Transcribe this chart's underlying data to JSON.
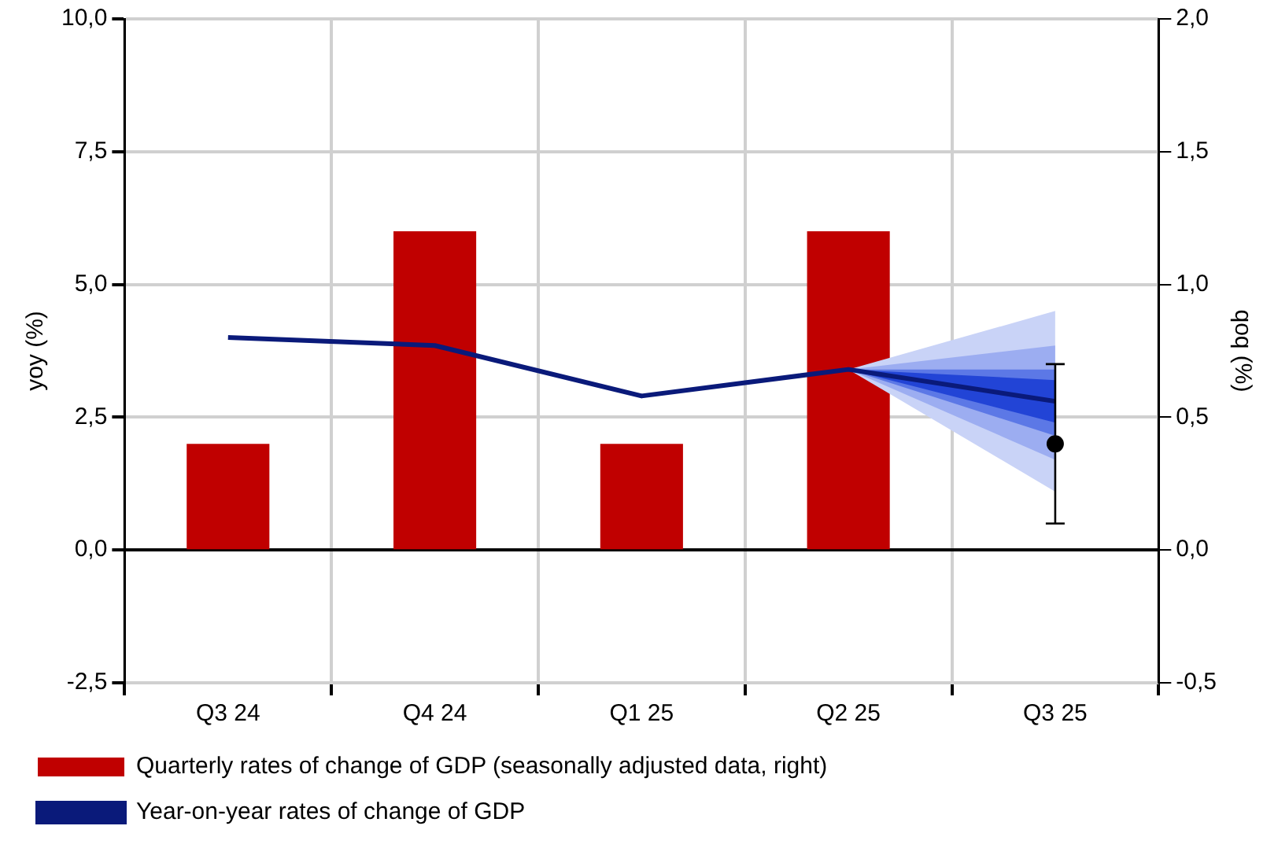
{
  "chart_data": {
    "type": "bar",
    "ylabel": "yoy (%)",
    "y2label": "qoq (%)",
    "categories": [
      "Q3 24",
      "Q4 24",
      "Q1 25",
      "Q2 25",
      "Q3 25"
    ],
    "series": [
      {
        "name": "Quarterly rates of change of GDP (seasonally adjusted data, right)",
        "axis": "y2",
        "color": "#c00000",
        "values": [
          0.4,
          1.2,
          0.4,
          1.2,
          null
        ]
      },
      {
        "type": "line",
        "color": "#c9d3f7",
        "values": [
          null,
          null,
          null,
          null,
          null
        ],
        "lower": [
          null,
          null,
          null,
          3.4,
          1.1
        ],
        "upper": [
          null,
          null,
          null,
          3.4,
          4.5
        ]
      },
      {
        "type": "line",
        "color": "#9cadf1",
        "values": [
          null,
          null,
          null,
          null,
          null
        ],
        "lower": [
          null,
          null,
          null,
          3.4,
          1.7
        ],
        "upper": [
          null,
          null,
          null,
          3.4,
          3.85
        ]
      },
      {
        "type": "line",
        "color": "#5c78e6",
        "values": [
          null,
          null,
          null,
          null,
          null
        ],
        "lower": [
          null,
          null,
          null,
          3.4,
          2.15
        ],
        "upper": [
          null,
          null,
          null,
          3.4,
          3.4
        ]
      },
      {
        "type": "line",
        "color": "#2244d6",
        "values": [
          null,
          null,
          null,
          null,
          null
        ],
        "lower": [
          null,
          null,
          null,
          3.4,
          2.4
        ],
        "upper": [
          null,
          null,
          null,
          3.4,
          3.2
        ]
      },
      {
        "name": "Year-on-year rates of change of GDP",
        "type": "line",
        "color": "#0a1a7a",
        "values": [
          4.0,
          3.85,
          2.9,
          3.4,
          2.8
        ]
      },
      {
        "type": "scatter",
        "color": "#000000",
        "x": [
          "Q3 25"
        ],
        "values": [
          2.0
        ],
        "errors": [
          [
            0.5,
            3.5
          ]
        ]
      }
    ],
    "ylim": [
      -2.5,
      10
    ],
    "yticks": [
      {
        "value": -2.5,
        "label": "-2,5"
      },
      {
        "value": 0,
        "label": "0,0"
      },
      {
        "value": 2.5,
        "label": "2,5"
      },
      {
        "value": 5,
        "label": "5,0"
      },
      {
        "value": 7.5,
        "label": "7,5"
      },
      {
        "value": 10,
        "label": "10,0"
      }
    ],
    "y2lim": [
      -0.5,
      2
    ],
    "y2ticks": [
      {
        "value": -0.5,
        "label": "-0,5"
      },
      {
        "value": 0,
        "label": "0,0"
      },
      {
        "value": 0.5,
        "label": "0,5"
      },
      {
        "value": 1,
        "label": "1,0"
      },
      {
        "value": 1.5,
        "label": "1,5"
      },
      {
        "value": 2,
        "label": "2,0"
      }
    ],
    "grid": true,
    "legend": "bottom",
    "line_style": "solid"
  }
}
